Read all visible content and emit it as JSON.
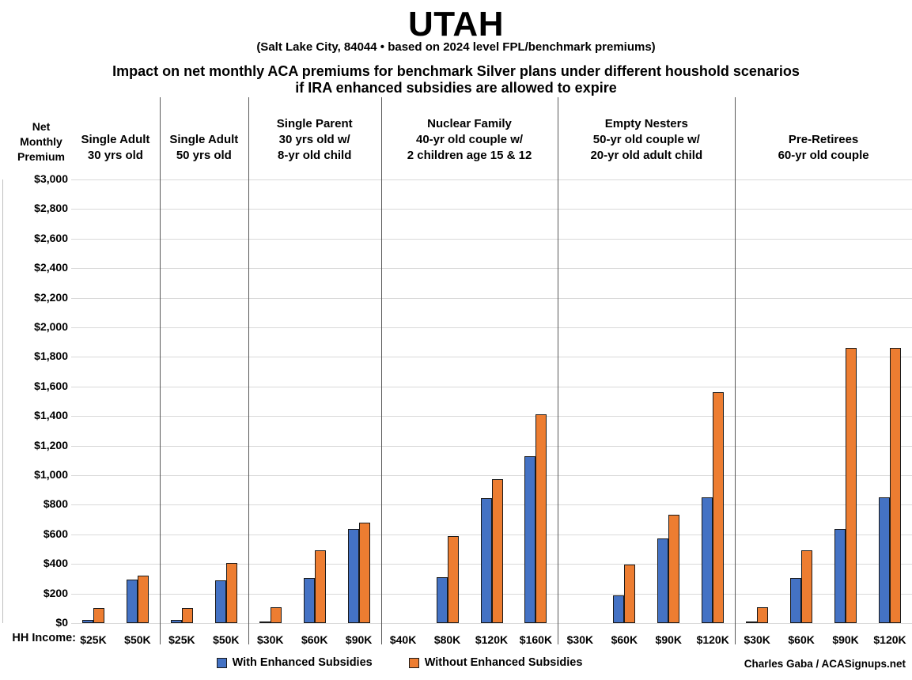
{
  "title": "UTAH",
  "subtitle": "(Salt Lake City, 84044 • based on 2024 level FPL/benchmark premiums)",
  "heading_line1": "Impact on net monthly ACA premiums for benchmark Silver plans under different houshold scenarios",
  "heading_line2": "if IRA enhanced subsidies are allowed to expire",
  "y_axis_title_lines": [
    "Net",
    "Monthly",
    "Premium"
  ],
  "x_axis_title": "HH Income:",
  "credit": "Charles Gaba / ACASignups.net",
  "legend": [
    {
      "label": "With Enhanced Subsidies",
      "color": "#4472C4"
    },
    {
      "label": "Without Enhanced Subsidies",
      "color": "#ED7D31"
    }
  ],
  "chart_data": {
    "type": "bar",
    "title": "Impact on net monthly ACA premiums for benchmark Silver plans under different houshold scenarios if IRA enhanced subsidies are allowed to expire",
    "ylabel": "Net Monthly Premium",
    "xlabel": "HH Income",
    "ylim": [
      0,
      3000
    ],
    "ytick_step": 200,
    "ytick_labels": [
      "$0",
      "$200",
      "$400",
      "$600",
      "$800",
      "$1,000",
      "$1,200",
      "$1,400",
      "$1,600",
      "$1,800",
      "$2,000",
      "$2,200",
      "$2,400",
      "$2,600",
      "$2,800",
      "$3,000"
    ],
    "grid": true,
    "legend_position": "bottom",
    "series_names": [
      "With Enhanced Subsidies",
      "Without Enhanced Subsidies"
    ],
    "colors": {
      "with": "#4472C4",
      "without": "#ED7D31",
      "bar_border": "#1a1a1a",
      "gridline": "#d9d9d9",
      "separator": "#595959"
    },
    "groups": [
      {
        "header_lines": [
          "Single Adult",
          "30 yrs old"
        ],
        "categories": [
          "$25K",
          "$50K"
        ],
        "series": [
          {
            "name": "With Enhanced Subsidies",
            "values": [
              20,
              295
            ]
          },
          {
            "name": "Without Enhanced Subsidies",
            "values": [
              100,
              320
            ]
          }
        ]
      },
      {
        "header_lines": [
          "Single Adult",
          "50 yrs old"
        ],
        "categories": [
          "$25K",
          "$50K"
        ],
        "series": [
          {
            "name": "With Enhanced Subsidies",
            "values": [
              20,
              290
            ]
          },
          {
            "name": "Without Enhanced Subsidies",
            "values": [
              100,
              405
            ]
          }
        ]
      },
      {
        "header_lines": [
          "Single Parent",
          "30 yrs old w/",
          "8-yr old child"
        ],
        "categories": [
          "$30K",
          "$60K",
          "$90K"
        ],
        "series": [
          {
            "name": "With Enhanced Subsidies",
            "values": [
              10,
              305,
              635
            ]
          },
          {
            "name": "Without Enhanced Subsidies",
            "values": [
              105,
              490,
              680
            ]
          }
        ]
      },
      {
        "header_lines": [
          "Nuclear Family",
          "40-yr old couple w/",
          "2 children age 15 & 12"
        ],
        "categories": [
          "$40K",
          "$80K",
          "$120K",
          "$160K"
        ],
        "series": [
          {
            "name": "With Enhanced Subsidies",
            "values": [
              0,
              310,
              845,
              1130
            ]
          },
          {
            "name": "Without Enhanced Subsidies",
            "values": [
              0,
              590,
              975,
              1410
            ]
          }
        ]
      },
      {
        "header_lines": [
          "Empty Nesters",
          "50-yr old couple w/",
          "20-yr old adult child"
        ],
        "categories": [
          "$30K",
          "$60K",
          "$90K",
          "$120K"
        ],
        "series": [
          {
            "name": "With Enhanced Subsidies",
            "values": [
              0,
              185,
              570,
              850
            ]
          },
          {
            "name": "Without Enhanced Subsidies",
            "values": [
              0,
              395,
              730,
              1560
            ]
          }
        ]
      },
      {
        "header_lines": [
          "Pre-Retirees",
          "60-yr old couple"
        ],
        "categories": [
          "$30K",
          "$60K",
          "$90K",
          "$120K"
        ],
        "series": [
          {
            "name": "With Enhanced Subsidies",
            "values": [
              10,
              305,
              635,
              850
            ]
          },
          {
            "name": "Without Enhanced Subsidies",
            "values": [
              105,
              490,
              1860,
              1860
            ]
          }
        ]
      }
    ]
  }
}
